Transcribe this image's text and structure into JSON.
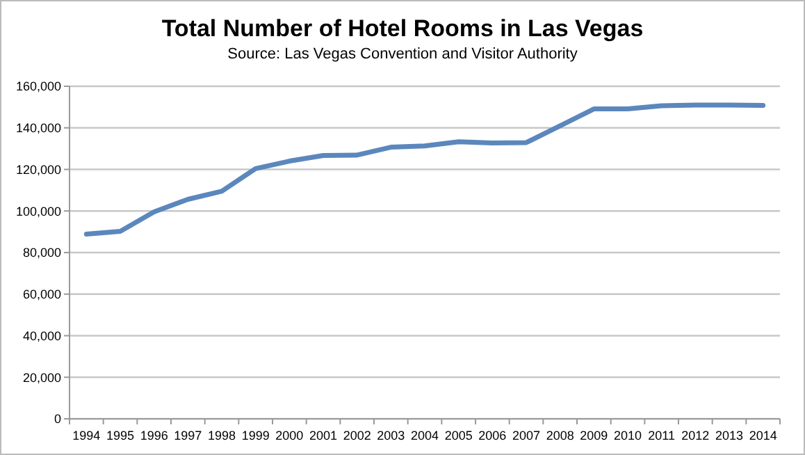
{
  "chart_data": {
    "type": "line",
    "title": "Total Number of Hotel Rooms in Las Vegas",
    "annotations": [
      "Source: Las Vegas Convention and Visitor Authority"
    ],
    "categories": [
      "1994",
      "1995",
      "1996",
      "1997",
      "1998",
      "1999",
      "2000",
      "2001",
      "2002",
      "2003",
      "2004",
      "2005",
      "2006",
      "2007",
      "2008",
      "2009",
      "2010",
      "2011",
      "2012",
      "2013",
      "2014"
    ],
    "series": [
      {
        "color": "#5b87bd",
        "values": [
          88900,
          90200,
          99600,
          105600,
          109500,
          120400,
          124000,
          126700,
          126900,
          130700,
          131300,
          133300,
          132700,
          132900,
          141000,
          149100,
          149100,
          150600,
          151000,
          151000,
          150800
        ]
      }
    ],
    "ylim": [
      0,
      160000
    ],
    "yticks": [
      {
        "value": 0,
        "label": "0"
      },
      {
        "value": 20000,
        "label": "20,000"
      },
      {
        "value": 40000,
        "label": "40,000"
      },
      {
        "value": 60000,
        "label": "60,000"
      },
      {
        "value": 80000,
        "label": "80,000"
      },
      {
        "value": 100000,
        "label": "100,000"
      },
      {
        "value": 120000,
        "label": "120,000"
      },
      {
        "value": 140000,
        "label": "140,000"
      },
      {
        "value": 160000,
        "label": "160,000"
      }
    ],
    "grid": "y",
    "marker": "none",
    "line_style": "solid"
  }
}
